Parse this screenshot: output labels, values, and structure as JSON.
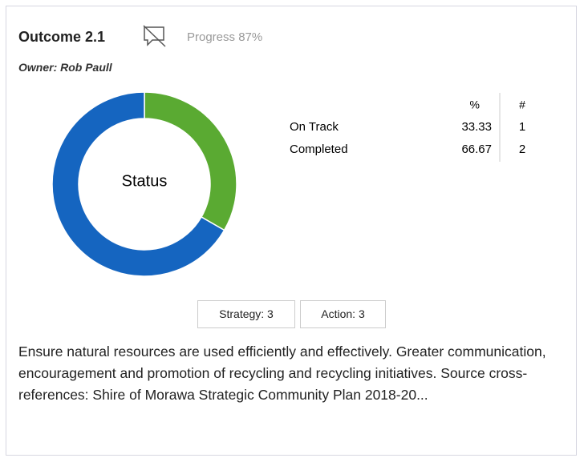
{
  "header": {
    "title": "Outcome 2.1",
    "progress": "Progress 87%",
    "owner": "Owner: Rob Paull"
  },
  "chart_data": {
    "type": "pie",
    "donut": true,
    "center_label": "Status",
    "categories": [
      "On Track",
      "Completed"
    ],
    "values": [
      33.33,
      66.67
    ],
    "counts": [
      1,
      2
    ],
    "colors": [
      "#5aaa32",
      "#1565c0"
    ],
    "columns": [
      "%",
      "#"
    ]
  },
  "buttons": [
    "Strategy: 3",
    "Action: 3"
  ],
  "description": "Ensure natural resources are used efficiently and effectively. Greater communication, encouragement and promotion of recycling and recycling initiatives. Source cross-references: Shire of Morawa Strategic Community Plan 2018-20..."
}
